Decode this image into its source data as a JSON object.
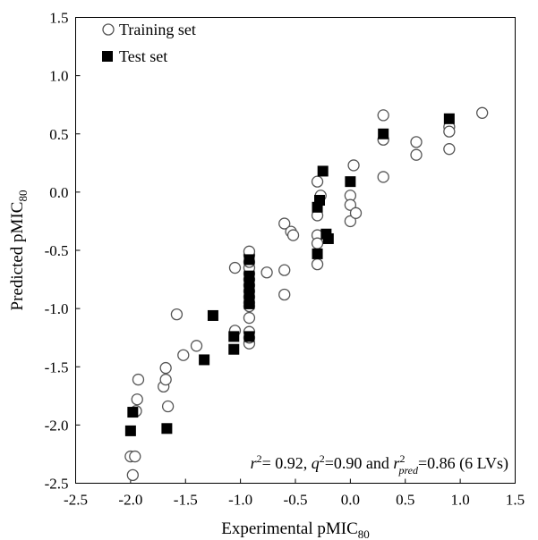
{
  "chart_data": {
    "type": "scatter",
    "xlabel": "Experimental pMIC",
    "xlabel_sub": "80",
    "ylabel": "Predicted pMIC",
    "ylabel_sub": "80",
    "xlim": [
      -2.5,
      1.5
    ],
    "ylim": [
      -2.5,
      1.5
    ],
    "x_ticks": [
      "-2.5",
      "-2.0",
      "-1.5",
      "-1.0",
      "-0.5",
      "0.0",
      "0.5",
      "1.0",
      "1.5"
    ],
    "y_ticks": [
      "-2.5",
      "-2.0",
      "-1.5",
      "-1.0",
      "-0.5",
      "0.0",
      "0.5",
      "1.0",
      "1.5"
    ],
    "grid": false,
    "legend_position": "top-left",
    "annotation": {
      "r2_label": "r",
      "r2_sup": "2",
      "r2_value": "= 0.92, ",
      "q2_label": "q",
      "q2_sup": "2",
      "q2_value": "=0.90 and ",
      "rpred_label": "r",
      "rpred_sup": "2",
      "rpred_sub": "pred",
      "rpred_value": "=0.86 (6 LVs)"
    },
    "series": [
      {
        "name": "Training set",
        "marker": "open-circle",
        "color": "#555555",
        "points": [
          [
            -2.0,
            -2.27
          ],
          [
            -1.98,
            -2.43
          ],
          [
            -1.96,
            -2.27
          ],
          [
            -1.95,
            -1.88
          ],
          [
            -1.94,
            -1.78
          ],
          [
            -1.93,
            -1.61
          ],
          [
            -1.7,
            -1.67
          ],
          [
            -1.68,
            -1.61
          ],
          [
            -1.68,
            -1.51
          ],
          [
            -1.66,
            -1.84
          ],
          [
            -1.58,
            -1.05
          ],
          [
            -1.52,
            -1.4
          ],
          [
            -1.4,
            -1.32
          ],
          [
            -1.05,
            -0.65
          ],
          [
            -1.05,
            -1.19
          ],
          [
            -0.92,
            -1.3
          ],
          [
            -0.92,
            -1.25
          ],
          [
            -0.92,
            -1.2
          ],
          [
            -0.92,
            -1.08
          ],
          [
            -0.92,
            -0.98
          ],
          [
            -0.92,
            -0.95
          ],
          [
            -0.92,
            -0.9
          ],
          [
            -0.92,
            -0.85
          ],
          [
            -0.92,
            -0.8
          ],
          [
            -0.92,
            -0.75
          ],
          [
            -0.92,
            -0.7
          ],
          [
            -0.92,
            -0.65
          ],
          [
            -0.92,
            -0.6
          ],
          [
            -0.92,
            -0.54
          ],
          [
            -0.92,
            -0.51
          ],
          [
            -0.76,
            -0.69
          ],
          [
            -0.6,
            -0.27
          ],
          [
            -0.6,
            -0.67
          ],
          [
            -0.6,
            -0.88
          ],
          [
            -0.54,
            -0.34
          ],
          [
            -0.52,
            -0.37
          ],
          [
            -0.3,
            0.09
          ],
          [
            -0.3,
            -0.2
          ],
          [
            -0.3,
            -0.37
          ],
          [
            -0.3,
            -0.44
          ],
          [
            -0.3,
            -0.62
          ],
          [
            -0.27,
            -0.03
          ],
          [
            0.0,
            -0.03
          ],
          [
            0.0,
            -0.11
          ],
          [
            0.0,
            -0.25
          ],
          [
            0.03,
            0.23
          ],
          [
            0.05,
            -0.18
          ],
          [
            0.3,
            0.66
          ],
          [
            0.3,
            0.45
          ],
          [
            0.3,
            0.13
          ],
          [
            0.6,
            0.43
          ],
          [
            0.6,
            0.32
          ],
          [
            0.9,
            0.56
          ],
          [
            0.9,
            0.52
          ],
          [
            0.9,
            0.37
          ],
          [
            1.2,
            0.68
          ]
        ]
      },
      {
        "name": "Test set",
        "marker": "filled-square",
        "color": "#000000",
        "points": [
          [
            -2.0,
            -2.05
          ],
          [
            -1.98,
            -1.89
          ],
          [
            -1.67,
            -2.03
          ],
          [
            -1.25,
            -1.06
          ],
          [
            -1.33,
            -1.44
          ],
          [
            -1.06,
            -1.24
          ],
          [
            -1.06,
            -1.35
          ],
          [
            -0.92,
            -0.58
          ],
          [
            -0.92,
            -0.72
          ],
          [
            -0.92,
            -0.78
          ],
          [
            -0.92,
            -0.84
          ],
          [
            -0.92,
            -0.9
          ],
          [
            -0.92,
            -0.96
          ],
          [
            -0.92,
            -1.24
          ],
          [
            -0.3,
            -0.13
          ],
          [
            -0.3,
            -0.53
          ],
          [
            -0.28,
            -0.07
          ],
          [
            -0.25,
            0.18
          ],
          [
            -0.22,
            -0.36
          ],
          [
            -0.2,
            -0.4
          ],
          [
            0.0,
            0.09
          ],
          [
            0.3,
            0.5
          ],
          [
            0.9,
            0.63
          ]
        ]
      }
    ]
  }
}
